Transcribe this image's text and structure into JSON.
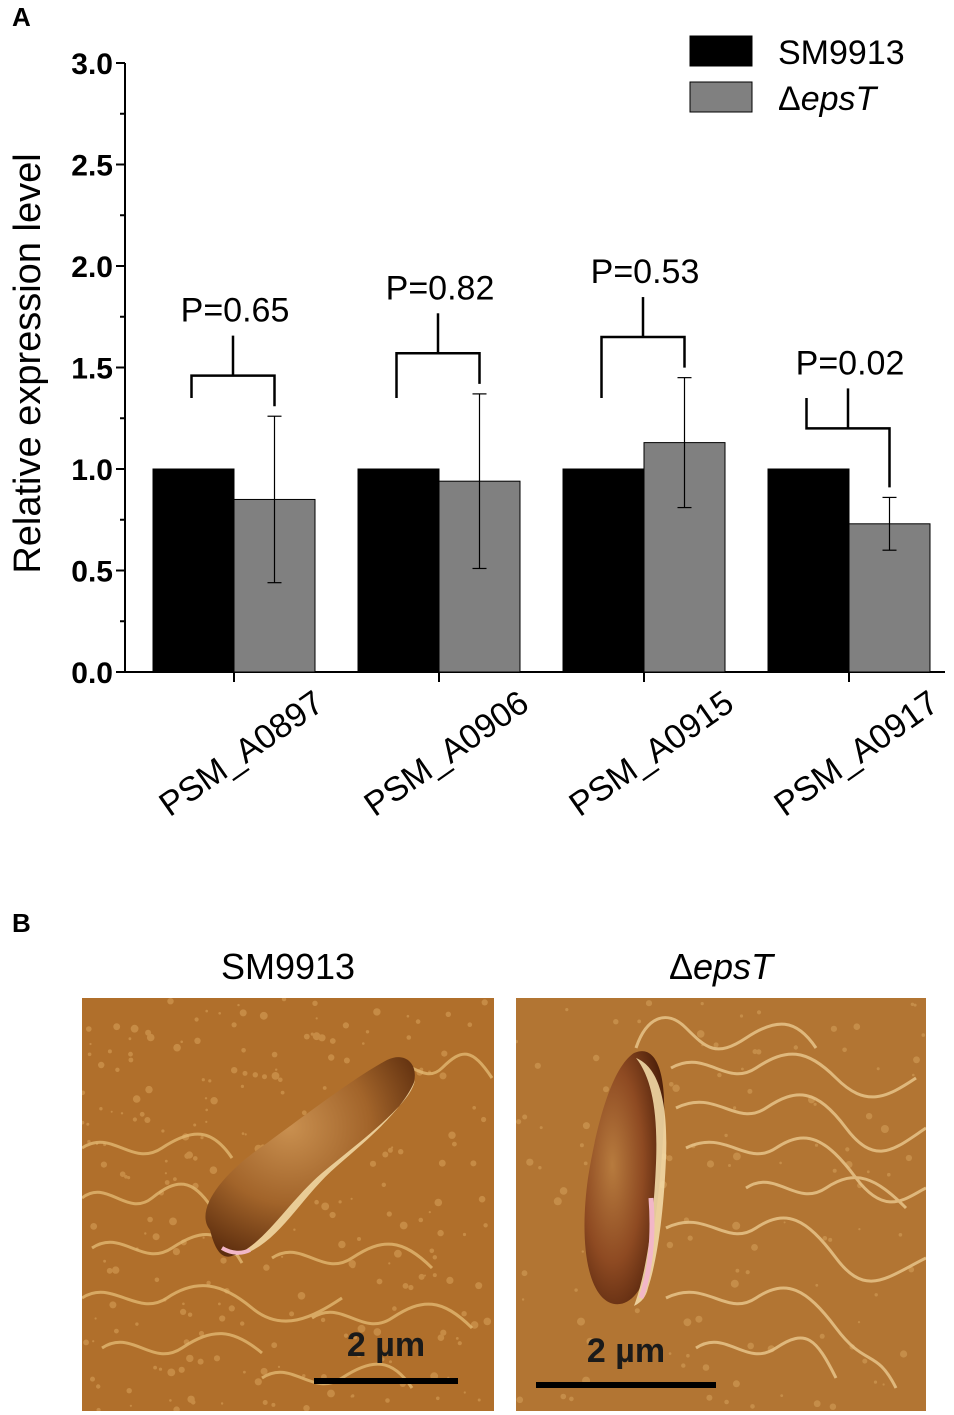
{
  "panels": {
    "a_label": "A",
    "b_label": "B"
  },
  "chart_data": {
    "type": "bar",
    "title": "",
    "xlabel": "",
    "ylabel": "Relative expression level",
    "ylim": [
      0,
      3.0
    ],
    "yticks": [
      "0.0",
      "0.5",
      "1.0",
      "1.5",
      "2.0",
      "2.5",
      "3.0"
    ],
    "categories": [
      "PSM_A0897",
      "PSM_A0906",
      "PSM_A0915",
      "PSM_A0917"
    ],
    "series": [
      {
        "name": "SM9913",
        "values": [
          1.0,
          1.0,
          1.0,
          1.0
        ],
        "errors": [
          0,
          0,
          0,
          0
        ],
        "color": "#000000"
      },
      {
        "name": "epsT",
        "name_prefix": "Δ",
        "values": [
          0.85,
          0.94,
          1.13,
          0.73
        ],
        "errors": [
          0.41,
          0.43,
          0.32,
          0.13
        ],
        "color": "#808080"
      }
    ],
    "annotations": [
      "P=0.65",
      "P=0.82",
      "P=0.53",
      "P=0.02"
    ],
    "legend_position": "top-right",
    "grid": false
  },
  "images": {
    "left_title": "SM9913",
    "right_title_prefix": "Δ",
    "right_title_italic": "epsT",
    "left_scalebar": "2 µm",
    "right_scalebar": "2 µm"
  },
  "colors": {
    "afm_background": "#b06f2b",
    "bar_black": "#000000",
    "bar_gray": "#808080"
  }
}
